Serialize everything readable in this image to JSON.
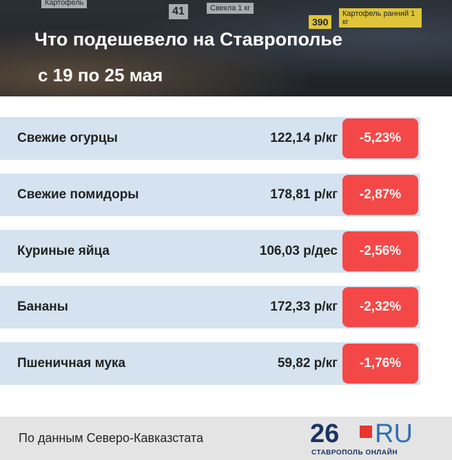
{
  "header": {
    "title": "Что подешевело на Ставрополье",
    "subtitle": "с 19 по 25 мая",
    "background_tags": [
      "Картофель",
      "41",
      "Свекла 1 кг",
      "390",
      "Картофель ранний 1 кг"
    ]
  },
  "table": {
    "rows": [
      [
        "Свежие огурцы",
        "122,14 р/кг",
        "-5,23%"
      ],
      [
        "Свежие помидоры",
        "178,81 р/кг",
        "-2,87%"
      ],
      [
        "Куриные яйца",
        "106,03 р/дес",
        "-2,56%"
      ],
      [
        "Бананы",
        "172,33 р/кг",
        "-2,32%"
      ],
      [
        "Пшеничная мука",
        "59,82 р/кг",
        "-1,76%"
      ]
    ]
  },
  "footer": {
    "source": "По данным Северо-Кавказстата",
    "logo_number": "26",
    "logo_domain": "RU",
    "logo_tagline": "СТАВРОПОЛЬ ОНЛАЙН"
  }
}
